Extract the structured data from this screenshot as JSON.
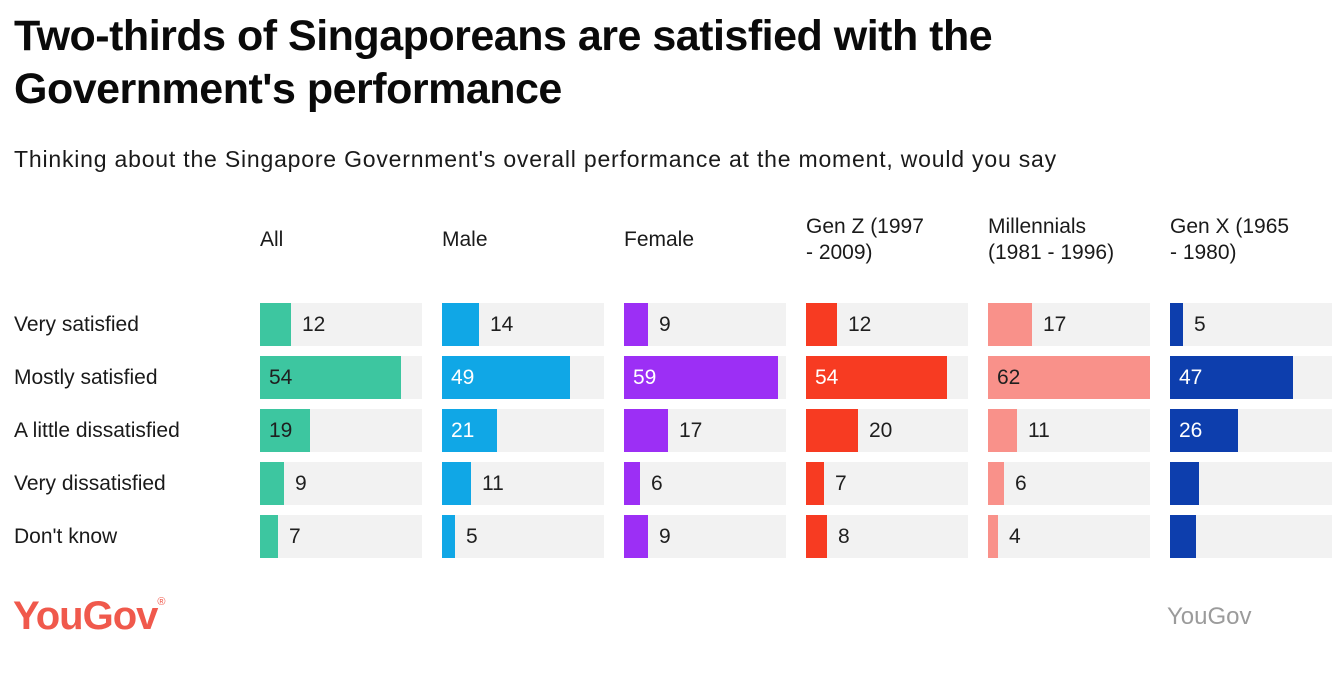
{
  "title": "Two-thirds of Singaporeans are satisfied with the Government's performance",
  "subtitle": "Thinking about the Singapore Government's overall performance at the moment, would you say",
  "footer": {
    "logo_text": "YouGov",
    "logo_reg_mark": "®",
    "logo_color": "#f0594c",
    "attribution_text": "YouGov",
    "attribution_color": "#9b9b9b"
  },
  "chart_data": {
    "type": "bar",
    "orientation": "horizontal",
    "title": "Two-thirds of Singaporeans are satisfied with the Government's performance",
    "subtitle": "Thinking about the Singapore Government's overall performance at the moment, would you say",
    "categories": [
      "Very satisfied",
      "Mostly satisfied",
      "A little dissatisfied",
      "Very dissatisfied",
      "Don't know"
    ],
    "scale_max": 62,
    "track_color": "#f2f2f2",
    "value_label_outside_color": "#1f1f1f",
    "grid": false,
    "legend_position": "column-headers",
    "series": [
      {
        "name": "All",
        "display": "All",
        "color": "#3dc6a0",
        "inside_label_color": "#1f1f1f",
        "values": [
          12,
          54,
          19,
          9,
          7
        ],
        "inside_rows": [
          1,
          2
        ],
        "hidden_label_rows": []
      },
      {
        "name": "Male",
        "display": "Male",
        "color": "#10a7e6",
        "inside_label_color": "#ffffff",
        "values": [
          14,
          49,
          21,
          11,
          5
        ],
        "inside_rows": [
          1,
          2
        ],
        "hidden_label_rows": []
      },
      {
        "name": "Female",
        "display": "Female",
        "color": "#9c2ff5",
        "inside_label_color": "#ffffff",
        "values": [
          9,
          59,
          17,
          6,
          9
        ],
        "inside_rows": [
          1
        ],
        "hidden_label_rows": []
      },
      {
        "name": "Gen Z (1997 - 2009)",
        "display": "Gen Z (1997\n- 2009)",
        "color": "#f73b22",
        "inside_label_color": "#ffffff",
        "values": [
          12,
          54,
          20,
          7,
          8
        ],
        "inside_rows": [
          1
        ],
        "hidden_label_rows": []
      },
      {
        "name": "Millennials (1981 - 1996)",
        "display": "Millennials\n(1981 - 1996)",
        "color": "#f9918a",
        "inside_label_color": "#1f1f1f",
        "values": [
          17,
          62,
          11,
          6,
          4
        ],
        "inside_rows": [
          1
        ],
        "hidden_label_rows": []
      },
      {
        "name": "Gen X (1965 - 1980)",
        "display": "Gen X (1965\n- 1980)",
        "color": "#0d3ead",
        "inside_label_color": "#ffffff",
        "values": [
          5,
          47,
          26,
          11,
          10
        ],
        "inside_rows": [
          1,
          2
        ],
        "hidden_label_rows": [
          3,
          4
        ],
        "clipped_by_viewport": true
      }
    ]
  }
}
